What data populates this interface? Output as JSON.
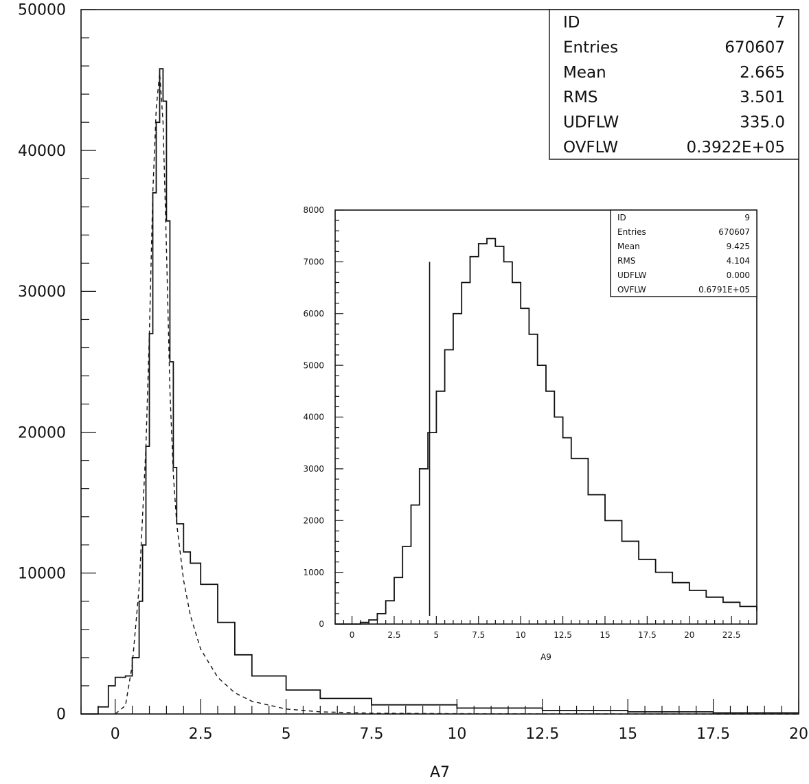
{
  "chart_data": [
    {
      "type": "histogram",
      "xlabel": "A7",
      "xlim": [
        -1,
        20
      ],
      "ylim": [
        0,
        50000
      ],
      "x_ticks": [
        "0",
        "2.5",
        "5",
        "7.5",
        "10",
        "12.5",
        "15",
        "17.5",
        "20"
      ],
      "y_ticks": [
        "0",
        "10000",
        "20000",
        "30000",
        "40000",
        "50000"
      ],
      "stats": [
        {
          "label": "ID",
          "value": "7"
        },
        {
          "label": "Entries",
          "value": "670607"
        },
        {
          "label": "Mean",
          "value": "2.665"
        },
        {
          "label": "RMS",
          "value": "3.501"
        },
        {
          "label": "UDFLW",
          "value": "335.0"
        },
        {
          "label": "OVFLW",
          "value": "0.3922E+05"
        }
      ],
      "series": [
        {
          "style": "histogram",
          "x": [
            -1.0,
            -0.5,
            -0.2,
            0.0,
            0.3,
            0.5,
            0.7,
            0.8,
            0.9,
            1.0,
            1.1,
            1.2,
            1.3,
            1.4,
            1.5,
            1.6,
            1.7,
            1.8,
            2.0,
            2.2,
            2.5,
            3.0,
            3.5,
            4.0,
            5.0,
            6.0,
            7.5,
            10.0,
            12.5,
            15.0,
            17.5,
            20.0
          ],
          "y": [
            0,
            500,
            2000,
            2600,
            2700,
            4000,
            8000,
            12000,
            19000,
            27000,
            37000,
            42000,
            45800,
            43500,
            35000,
            25000,
            17500,
            13500,
            11500,
            10700,
            9200,
            6500,
            4200,
            2700,
            1700,
            1100,
            650,
            420,
            250,
            150,
            80,
            40
          ]
        },
        {
          "style": "dashed",
          "x": [
            0.0,
            0.3,
            0.5,
            0.7,
            0.9,
            1.0,
            1.1,
            1.2,
            1.3,
            1.4,
            1.5,
            1.6,
            1.7,
            1.8,
            2.0,
            2.2,
            2.5,
            3.0,
            3.5,
            4.0,
            5.0,
            6.0,
            7.5,
            10.0,
            12.5,
            15.0,
            17.5,
            20.0
          ],
          "y": [
            0,
            600,
            3500,
            9000,
            19000,
            27000,
            37000,
            43000,
            45500,
            42000,
            33000,
            23000,
            17000,
            13500,
            9500,
            7000,
            4600,
            2600,
            1500,
            900,
            350,
            150,
            60,
            20,
            8,
            4,
            2,
            1
          ]
        }
      ]
    },
    {
      "type": "histogram",
      "xlabel": "A9",
      "xlim": [
        -1,
        24
      ],
      "ylim": [
        0,
        8000
      ],
      "x_ticks": [
        "0",
        "2.5",
        "5",
        "7.5",
        "10",
        "12.5",
        "15",
        "17.5",
        "20",
        "22.5"
      ],
      "y_ticks": [
        "0",
        "1000",
        "2000",
        "3000",
        "4000",
        "5000",
        "6000",
        "7000",
        "8000"
      ],
      "stats": [
        {
          "label": "ID",
          "value": "9"
        },
        {
          "label": "Entries",
          "value": "670607"
        },
        {
          "label": "Mean",
          "value": "9.425"
        },
        {
          "label": "RMS",
          "value": "4.104"
        },
        {
          "label": "UDFLW",
          "value": "0.000"
        },
        {
          "label": "OVFLW",
          "value": "0.6791E+05"
        }
      ],
      "cut_line": {
        "x": 4.6,
        "y_top": 7000
      },
      "series": [
        {
          "style": "histogram",
          "x": [
            -1.0,
            0.0,
            0.5,
            1.0,
            1.5,
            2.0,
            2.5,
            3.0,
            3.5,
            4.0,
            4.5,
            5.0,
            5.5,
            6.0,
            6.5,
            7.0,
            7.5,
            8.0,
            8.5,
            9.0,
            9.5,
            10.0,
            10.5,
            11.0,
            11.5,
            12.0,
            12.5,
            13.0,
            14.0,
            15.0,
            16.0,
            17.0,
            18.0,
            19.0,
            20.0,
            21.0,
            22.0,
            23.0,
            24.0
          ],
          "y": [
            0,
            0,
            30,
            80,
            200,
            450,
            900,
            1500,
            2300,
            3000,
            3700,
            4500,
            5300,
            6000,
            6600,
            7100,
            7350,
            7450,
            7300,
            7000,
            6600,
            6100,
            5600,
            5000,
            4500,
            4000,
            3600,
            3200,
            2500,
            2000,
            1600,
            1250,
            1000,
            800,
            650,
            520,
            420,
            340,
            260
          ]
        }
      ]
    }
  ]
}
